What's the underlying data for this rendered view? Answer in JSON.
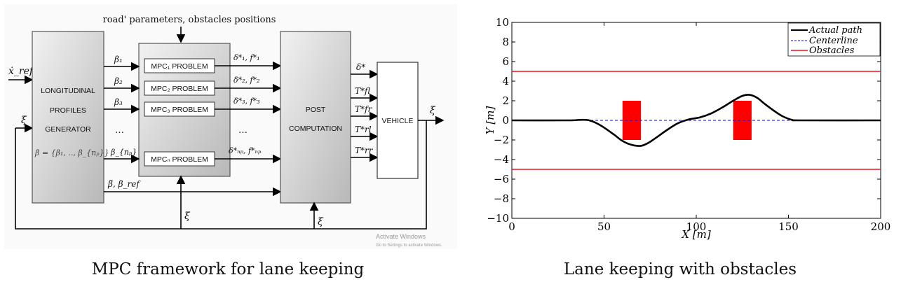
{
  "diagram": {
    "top_input": "road' parameters, obstacles positions",
    "x_ref_label": "ẋ_ref",
    "xi_label": "ξ",
    "generator_lines": [
      "LONGITUDINAL",
      "PROFILES",
      "GENERATOR"
    ],
    "beta_labels": [
      "β₁",
      "β₂",
      "β₃",
      "…",
      "β_{nₚ}"
    ],
    "beta_set_label": "β̄ = {β₁, .., β_{nₚ}}",
    "mpc_boxes": [
      "MPC₁ PROBLEM",
      "MPC₂ PROBLEM",
      "MPC₃ PROBLEM",
      "MPCₙ PROBLEM"
    ],
    "mpc_outputs": [
      "δ*₁, f*₁",
      "δ*₂, f*₂",
      "δ*₃, f*₃",
      "…",
      "δ*ₙₚ, f*ₙₚ"
    ],
    "post_lines": [
      "POST",
      "COMPUTATION"
    ],
    "post_outputs": [
      "δ*",
      "T*fl",
      "T*fr",
      "T*rl",
      "T*rr"
    ],
    "vehicle_label": "VEHICLE",
    "bottom_line_label": "β̃, β_ref",
    "watermark_line1": "Activate Windows",
    "watermark_line2": "Go to Settings to activate Windows."
  },
  "chart_data": {
    "type": "line",
    "xlabel": "X [m]",
    "ylabel": "Y [m]",
    "xlim": [
      0,
      200
    ],
    "ylim": [
      -10,
      10
    ],
    "x_ticks": [
      0,
      50,
      100,
      150,
      200
    ],
    "y_ticks": [
      10,
      8,
      6,
      4,
      2,
      0,
      -2,
      -4,
      -6,
      -8,
      -10
    ],
    "legend_position": "top-right",
    "series": [
      {
        "name": "Actual path",
        "color": "#000000",
        "style": "solid",
        "x": [
          0,
          30,
          37,
          42,
          48,
          55,
          60,
          65,
          70,
          74,
          78,
          84,
          90,
          96,
          102,
          108,
          114,
          120,
          125,
          129,
          133,
          137,
          142,
          147,
          152,
          157,
          200
        ],
        "y": [
          0,
          0,
          0.05,
          0,
          -0.5,
          -1.4,
          -2.1,
          -2.5,
          -2.6,
          -2.3,
          -1.8,
          -1.0,
          -0.3,
          0.1,
          0.3,
          0.7,
          1.3,
          2.0,
          2.5,
          2.6,
          2.3,
          1.7,
          1.0,
          0.4,
          0.05,
          0,
          0
        ]
      },
      {
        "name": "Centerline",
        "color": "#0000ff",
        "style": "dashed",
        "x": [
          0,
          200
        ],
        "y": [
          0,
          0
        ]
      },
      {
        "name": "Obstacles",
        "color": "#e8151b",
        "style": "solid",
        "lane_bounds": [
          5,
          -5
        ],
        "rects": [
          {
            "x": [
              60,
              70
            ],
            "y": [
              -2,
              2
            ]
          },
          {
            "x": [
              120,
              130
            ],
            "y": [
              -2,
              2
            ]
          }
        ]
      }
    ]
  },
  "captions": {
    "left": "MPC framework for lane keeping",
    "right": "Lane keeping with obstacles"
  }
}
